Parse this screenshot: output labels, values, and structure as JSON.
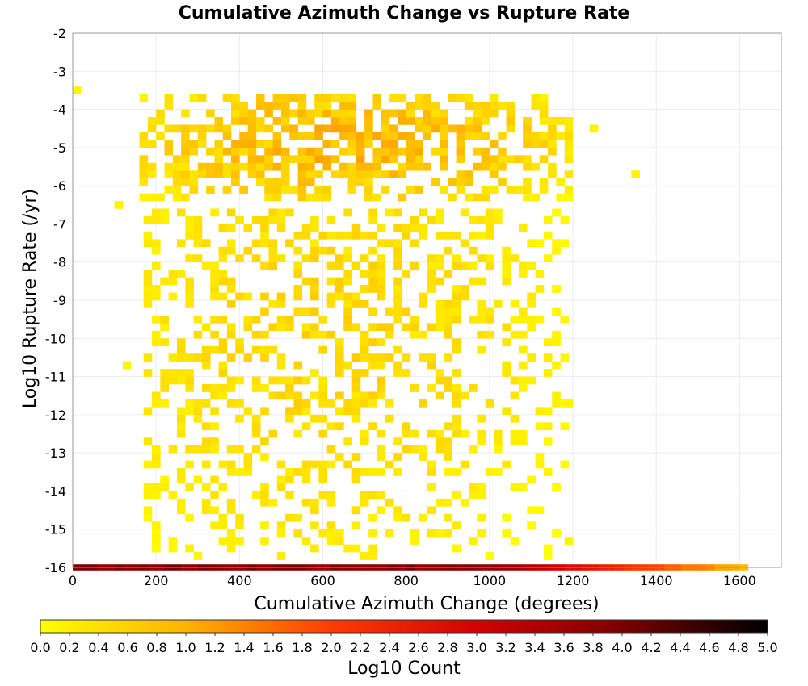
{
  "chart_data": {
    "type": "heatmap",
    "title": "Cumulative Azimuth Change vs Rupture Rate",
    "xlabel": "Cumulative Azimuth Change (degrees)",
    "ylabel": "Log10 Rupture Rate (/yr)",
    "xlim": [
      0,
      1700
    ],
    "ylim": [
      -16,
      -2
    ],
    "x_ticks": [
      "0",
      "200",
      "400",
      "600",
      "800",
      "1000",
      "1200",
      "1400",
      "1600"
    ],
    "y_ticks": [
      "-2",
      "-3",
      "-4",
      "-5",
      "-6",
      "-7",
      "-8",
      "-9",
      "-10",
      "-11",
      "-12",
      "-13",
      "-14",
      "-15",
      "-16"
    ],
    "grid": true,
    "bin_width": 20,
    "bin_height": 0.2,
    "colorbar": {
      "label": "Log10 Count",
      "range": [
        0,
        5
      ],
      "ticks": [
        "0.0",
        "0.2",
        "0.4",
        "0.6",
        "0.8",
        "1.0",
        "1.2",
        "1.4",
        "1.6",
        "1.8",
        "2.0",
        "2.2",
        "2.4",
        "2.6",
        "2.8",
        "3.0",
        "3.2",
        "3.4",
        "3.6",
        "3.8",
        "4.0",
        "4.2",
        "4.4",
        "4.6",
        "4.8",
        "5.0"
      ],
      "colors": [
        "#ffff00",
        "#ffb300",
        "#ff3b00",
        "#d40000",
        "#7a0000",
        "#000000"
      ]
    },
    "bottom_row": {
      "y": -16,
      "x_start": 0,
      "x_end": 1620,
      "description": "dense band of counts along the lowest rate bin"
    },
    "regions": [
      {
        "x_range": [
          160,
          1200
        ],
        "y_range": [
          -6.4,
          -3.6
        ],
        "density": 0.55,
        "center_x": 650,
        "center_y": -5.0,
        "peak": 1.2
      },
      {
        "x_range": [
          170,
          1190
        ],
        "y_range": [
          -15.8,
          -6.6
        ],
        "density": 0.32,
        "center_x": 600,
        "center_y": -10,
        "peak": 0.7
      }
    ]
  }
}
